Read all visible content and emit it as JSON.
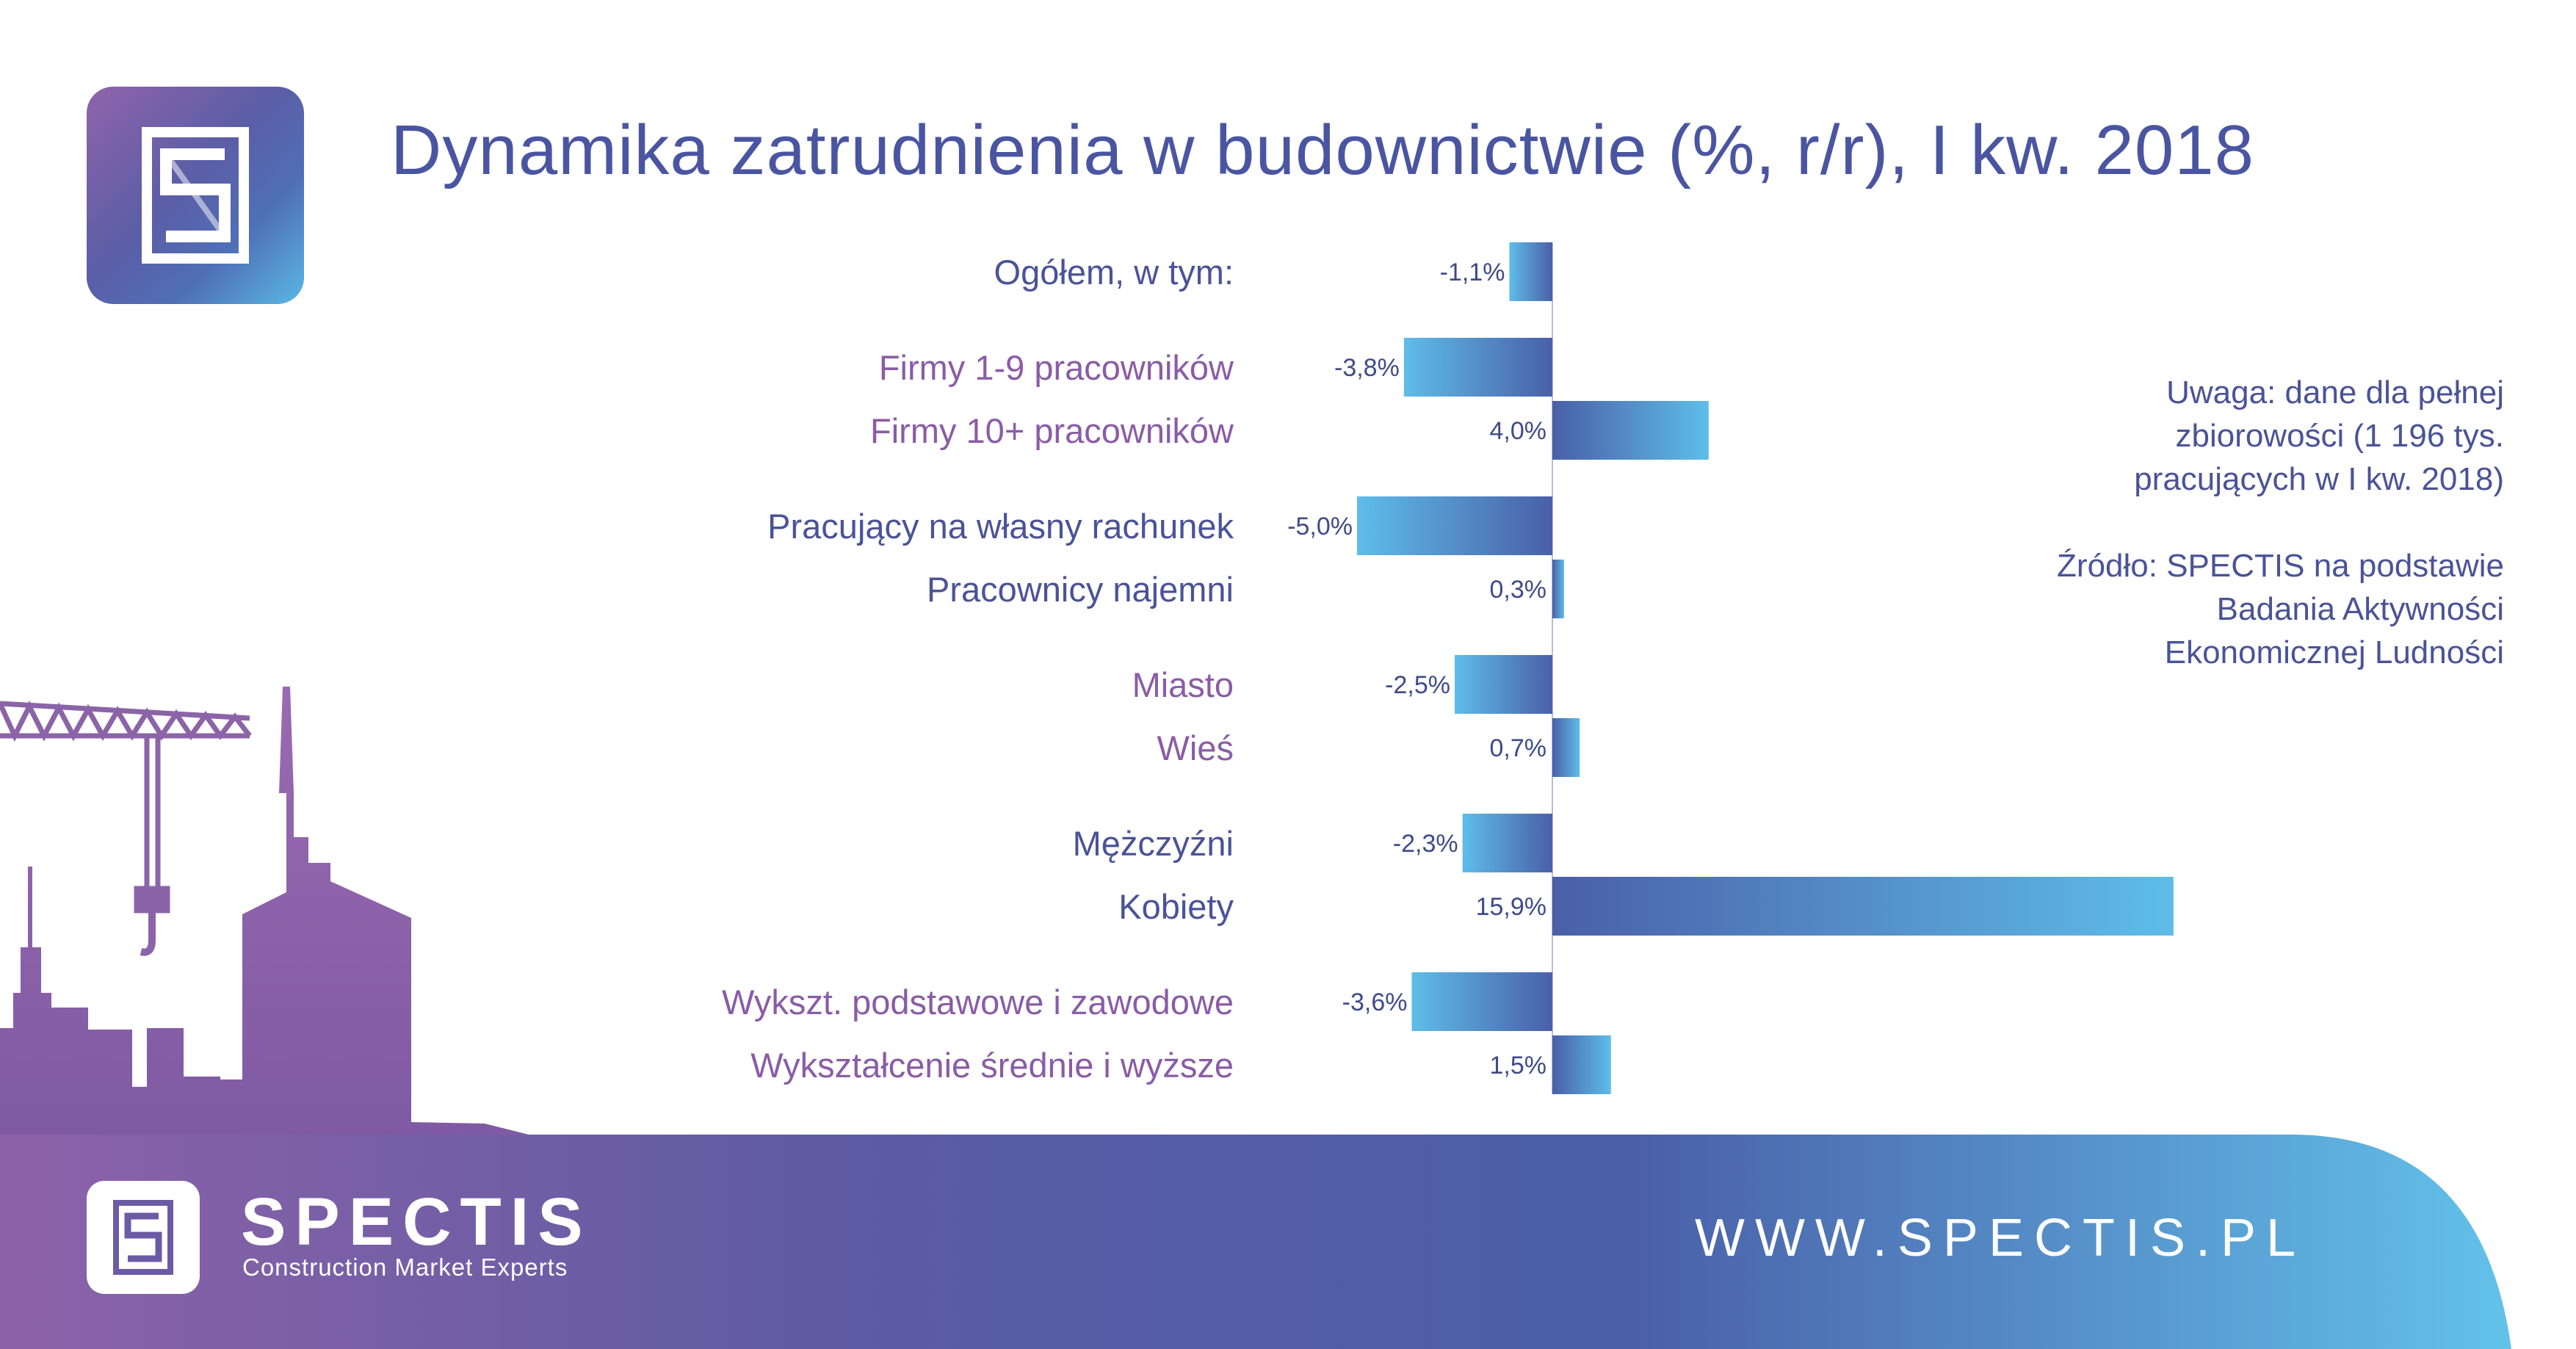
{
  "title": "Dynamika zatrudnienia w budownictwie (%, r/r), I kw. 2018",
  "note": {
    "line1": "Uwaga: dane dla pełnej",
    "line2": "zbiorowości (1 196 tys.",
    "line3": "pracujących w I kw. 2018)",
    "line4": "Źródło: SPECTIS na podstawie",
    "line5": "Badania Aktywności",
    "line6": "Ekonomicznej Ludności"
  },
  "brand": {
    "name": "SPECTIS",
    "tagline": "Construction Market Experts",
    "website": "WWW.SPECTIS.PL"
  },
  "colors": {
    "title": "#4a55a2",
    "label_blue": "#4a5398",
    "label_purple": "#8a5ca6",
    "bar_light": "#5ebde8",
    "bar_dark": "#4a5fa8",
    "purple": "#8b64a8"
  },
  "chart_data": {
    "type": "bar",
    "orientation": "horizontal",
    "categories": [
      "Ogółem, w tym:",
      "Firmy 1-9 pracowników",
      "Firmy 10+ pracowników",
      "Pracujący na własny rachunek",
      "Pracownicy najemni",
      "Miasto",
      "Wieś",
      "Mężczyźni",
      "Kobiety",
      "Wykszt. podstawowe i zawodowe",
      "Wykształcenie średnie i wyższe"
    ],
    "label_colors": [
      "blue",
      "purple",
      "purple",
      "blue",
      "blue",
      "purple",
      "purple",
      "blue",
      "blue",
      "purple",
      "purple"
    ],
    "values": [
      -1.1,
      -3.8,
      4.0,
      -5.0,
      0.3,
      -2.5,
      0.7,
      -2.3,
      15.9,
      -3.6,
      1.5
    ],
    "data_labels": [
      "-1,1%",
      "-3,8%",
      "4,0%",
      "-5,0%",
      "0,3%",
      "-2,5%",
      "0,7%",
      "-2,3%",
      "15,9%",
      "-3,6%",
      "1,5%"
    ],
    "unit": "%",
    "groups": [
      [
        0
      ],
      [
        1,
        2
      ],
      [
        3,
        4
      ],
      [
        5,
        6
      ],
      [
        7,
        8
      ],
      [
        9,
        10
      ]
    ],
    "xlim": [
      -5.0,
      15.9
    ],
    "grid": false,
    "legend": "none"
  }
}
